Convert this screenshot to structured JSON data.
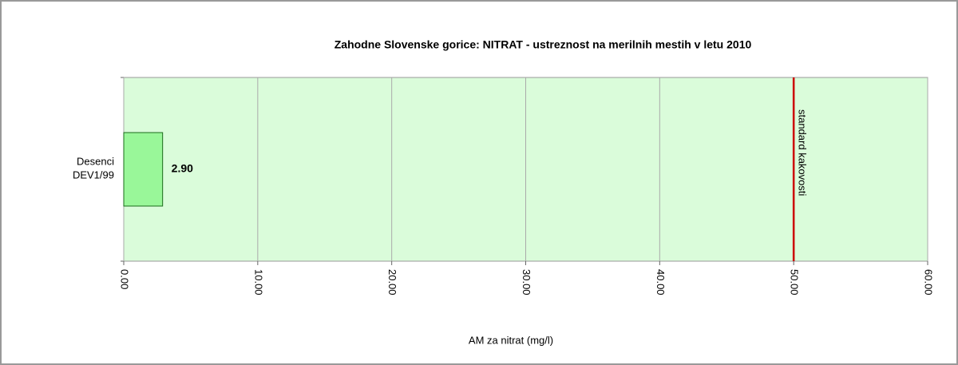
{
  "chart_data": {
    "type": "hbar",
    "title": "Zahodne Slovenske gorice: NITRAT  - ustreznost na merilnih mestih v letu 2010",
    "x_label": "AM za nitrat (mg/l)",
    "categories": [
      "Desenci DEV1/99"
    ],
    "values": [
      2.9
    ],
    "value_labels": [
      "2.90"
    ],
    "color": "#99f799",
    "xlim": [
      0,
      60
    ],
    "xticks": [
      {
        "value": 0,
        "label": "0.00"
      },
      {
        "value": 10,
        "label": "10.00"
      },
      {
        "value": 20,
        "label": "20.00"
      },
      {
        "value": 30,
        "label": "30.00"
      },
      {
        "value": 40,
        "label": "40.00"
      },
      {
        "value": 50,
        "label": "50.00"
      },
      {
        "value": 60,
        "label": "60.00"
      }
    ],
    "grid": true,
    "reference_lines": [
      {
        "value": 50,
        "label": "standard kakovosti",
        "color": "#cc0000"
      }
    ]
  }
}
